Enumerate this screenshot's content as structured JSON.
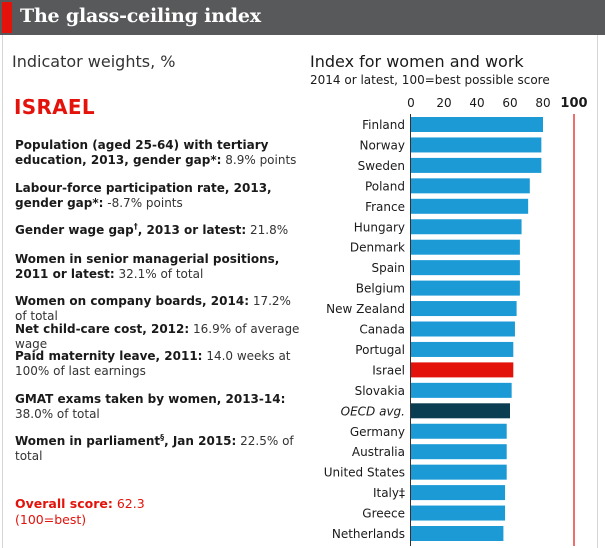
{
  "header": {
    "title": "The glass-ceiling index"
  },
  "left_panel": {
    "weights_title": "Indicator weights, %",
    "country": "ISRAEL",
    "indicators": [
      {
        "label": "Population (aged 25-64) with tertiary education, 2013, gender gap*:",
        "value": "8.9% points"
      },
      {
        "label": "Labour-force participation rate, 2013, gender gap*:",
        "value": "-8.7% points"
      },
      {
        "label": "Gender wage gap",
        "mark": "†",
        "label_after": ", 2013 or latest:",
        "value": "21.8%"
      },
      {
        "label": "Women in senior managerial positions, 2011 or latest:",
        "value": "32.1% of total"
      },
      {
        "label": "Women on company boards, 2014:",
        "value": "17.2% of total"
      },
      {
        "label": "Net child-care cost, 2012:",
        "value": "16.9% of average wage"
      },
      {
        "label": "Paid maternity leave, 2011:",
        "value": "14.0 weeks at 100% of last earnings"
      },
      {
        "label": "GMAT exams taken by women, 2013-14:",
        "value": "38.0% of total"
      },
      {
        "label": "Women in parliament",
        "mark": "§",
        "label_after": ", Jan 2015:",
        "value": "22.5% of total"
      }
    ],
    "overall_label": "Overall score:",
    "overall_value": "62.3",
    "overall_note": "(100=best)"
  },
  "chart_data": {
    "type": "bar",
    "orientation": "horizontal",
    "title": "Index for women and work",
    "subtitle": "2014 or latest, 100=best possible score",
    "xlim": [
      0,
      100
    ],
    "xticks": [
      "0",
      "20",
      "40",
      "60",
      "80",
      "100"
    ],
    "reference_line": 100,
    "categories": [
      "Finland",
      "Norway",
      "Sweden",
      "Poland",
      "France",
      "Hungary",
      "Denmark",
      "Spain",
      "Belgium",
      "New Zealand",
      "Canada",
      "Portugal",
      "Israel",
      "Slovakia",
      "OECD avg.",
      "Germany",
      "Australia",
      "United States",
      "Italy‡",
      "Greece",
      "Netherlands"
    ],
    "values": [
      80,
      79,
      79,
      72,
      71,
      67,
      66,
      66,
      66,
      64,
      63,
      62,
      62,
      61,
      60,
      58,
      58,
      58,
      57,
      57,
      56
    ],
    "highlight": {
      "Israel": "#e3120b",
      "OECD avg.": "#0b3d52"
    },
    "colors": {
      "bar": "#1b9ad6",
      "reference": "#e3120b",
      "axis": "#333333"
    }
  }
}
